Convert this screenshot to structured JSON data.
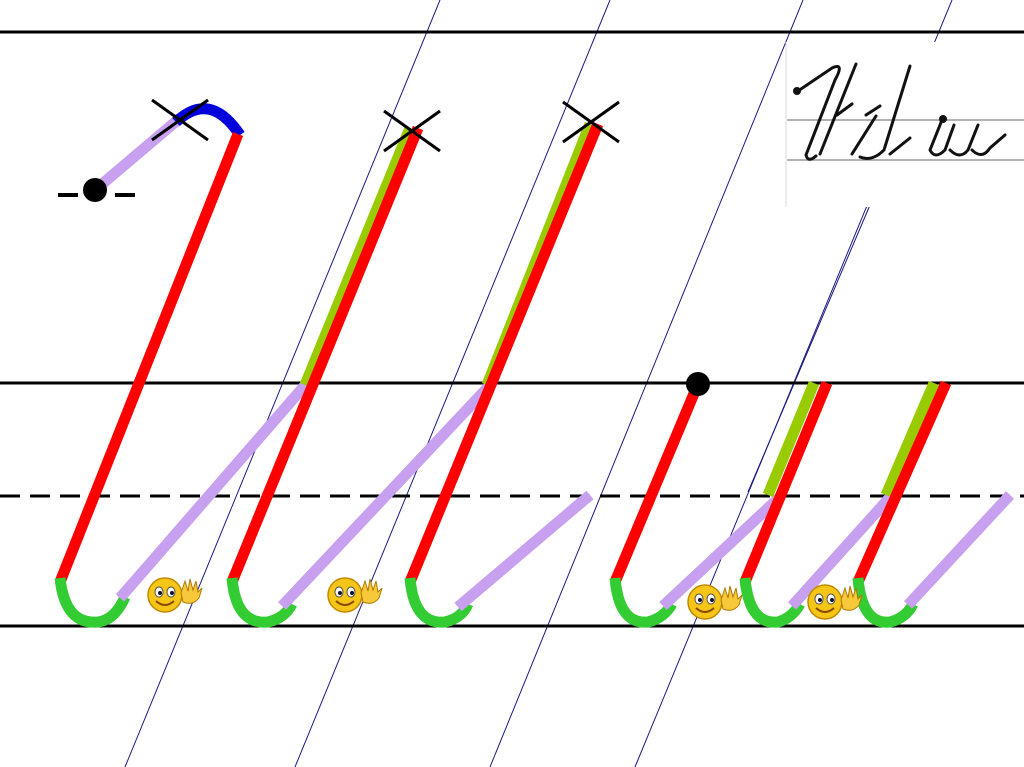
{
  "colors": {
    "ruling": "#000000",
    "slant_guides": "#1a1a80",
    "stroke_entry": "#c8a0f0",
    "stroke_loop_top": "#0000dd",
    "stroke_down": "#ff0000",
    "stroke_retrace": "#99cc00",
    "stroke_bottom_curve": "#33cc33",
    "start_point": "#000000",
    "smiley": "#f5c518"
  },
  "icons": {
    "start_point": "filled-dot",
    "turn_marker": "cross-mark",
    "encouragement": "waving-smiley"
  },
  "sample": {
    "description_image": "handwritten-letter-sample"
  }
}
